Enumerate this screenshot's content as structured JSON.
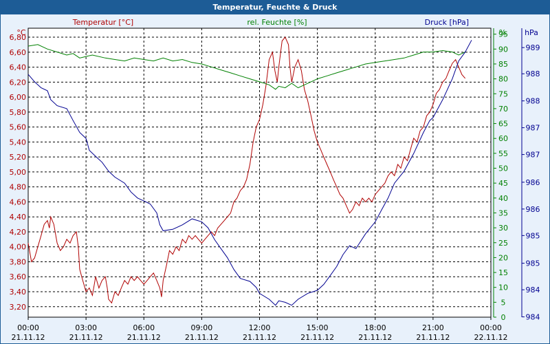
{
  "title": "Temperatur, Feuchte & Druck",
  "chart_data": {
    "type": "line",
    "legend": {
      "temperature": "Temperatur [°C]",
      "humidity": "rel. Feuchte [%]",
      "pressure": "Druck [hPa]"
    },
    "axes": {
      "temperature": {
        "unit": "°C",
        "ylim": [
          3.06,
          6.92
        ],
        "ticks": [
          "3,20",
          "3,40",
          "3,60",
          "3,80",
          "4,00",
          "4,20",
          "4,40",
          "4,60",
          "4,80",
          "5,00",
          "5,20",
          "5,40",
          "5,60",
          "5,80",
          "6,00",
          "6,20",
          "6,40",
          "6,60",
          "6,80"
        ],
        "tick_values": [
          3.2,
          3.4,
          3.6,
          3.8,
          4.0,
          4.2,
          4.4,
          4.6,
          4.8,
          5.0,
          5.2,
          5.4,
          5.6,
          5.8,
          6.0,
          6.2,
          6.4,
          6.6,
          6.8
        ],
        "color": "#b00000"
      },
      "humidity": {
        "unit": "%",
        "ylim": [
          0,
          97
        ],
        "ticks": [
          "0",
          "5",
          "10",
          "15",
          "20",
          "25",
          "30",
          "35",
          "40",
          "45",
          "50",
          "55",
          "60",
          "65",
          "70",
          "75",
          "80",
          "85",
          "90",
          "95"
        ],
        "tick_values": [
          0,
          5,
          10,
          15,
          20,
          25,
          30,
          35,
          40,
          45,
          50,
          55,
          60,
          65,
          70,
          75,
          80,
          85,
          90,
          95
        ],
        "color": "#008000"
      },
      "pressure": {
        "unit": "hPa",
        "ticks": [
          "989",
          "988",
          "988",
          "987",
          "987",
          "986",
          "986",
          "985",
          "985",
          "984",
          "984"
        ],
        "tick_humidity_positions": [
          90.5,
          81.7,
          72.6,
          63.6,
          54.6,
          45.3,
          36.3,
          27.4,
          18.1,
          9.2,
          0.1
        ],
        "color": "#000090"
      }
    },
    "x": {
      "ticks_time": [
        "00:00",
        "03:00",
        "06:00",
        "09:00",
        "12:00",
        "15:00",
        "18:00",
        "21:00",
        "00:00"
      ],
      "ticks_date": [
        "21.11.12",
        "21.11.12",
        "21.11.12",
        "21.11.12",
        "21.11.12",
        "21.11.12",
        "21.11.12",
        "21.11.12",
        "22.11.12"
      ],
      "xlim_hours": [
        0,
        24
      ]
    },
    "grid": true,
    "series": [
      {
        "name": "Temperatur [°C]",
        "axis": "temperature",
        "color": "#b00000",
        "points": [
          [
            0,
            4.05
          ],
          [
            0.17,
            3.8
          ],
          [
            0.33,
            3.85
          ],
          [
            0.5,
            4.0
          ],
          [
            0.67,
            4.15
          ],
          [
            0.83,
            4.3
          ],
          [
            1.0,
            4.35
          ],
          [
            1.1,
            4.25
          ],
          [
            1.17,
            4.4
          ],
          [
            1.33,
            4.3
          ],
          [
            1.5,
            4.05
          ],
          [
            1.67,
            3.95
          ],
          [
            1.83,
            4.0
          ],
          [
            2.0,
            4.1
          ],
          [
            2.17,
            4.05
          ],
          [
            2.33,
            4.15
          ],
          [
            2.5,
            4.2
          ],
          [
            2.6,
            4.0
          ],
          [
            2.67,
            3.7
          ],
          [
            2.83,
            3.55
          ],
          [
            3.0,
            3.4
          ],
          [
            3.17,
            3.45
          ],
          [
            3.33,
            3.35
          ],
          [
            3.5,
            3.6
          ],
          [
            3.67,
            3.45
          ],
          [
            3.83,
            3.55
          ],
          [
            4.0,
            3.6
          ],
          [
            4.1,
            3.45
          ],
          [
            4.17,
            3.3
          ],
          [
            4.33,
            3.25
          ],
          [
            4.5,
            3.4
          ],
          [
            4.67,
            3.35
          ],
          [
            4.83,
            3.45
          ],
          [
            5.0,
            3.55
          ],
          [
            5.17,
            3.5
          ],
          [
            5.33,
            3.6
          ],
          [
            5.5,
            3.55
          ],
          [
            5.67,
            3.6
          ],
          [
            5.83,
            3.55
          ],
          [
            6.0,
            3.5
          ],
          [
            6.17,
            3.55
          ],
          [
            6.33,
            3.6
          ],
          [
            6.5,
            3.65
          ],
          [
            6.67,
            3.55
          ],
          [
            6.83,
            3.45
          ],
          [
            6.92,
            3.33
          ],
          [
            7.0,
            3.55
          ],
          [
            7.17,
            3.75
          ],
          [
            7.33,
            3.95
          ],
          [
            7.5,
            3.9
          ],
          [
            7.67,
            4.0
          ],
          [
            7.83,
            3.95
          ],
          [
            8.0,
            4.1
          ],
          [
            8.17,
            4.05
          ],
          [
            8.33,
            4.15
          ],
          [
            8.5,
            4.1
          ],
          [
            8.67,
            4.15
          ],
          [
            8.83,
            4.1
          ],
          [
            9.0,
            4.05
          ],
          [
            9.17,
            4.1
          ],
          [
            9.33,
            4.15
          ],
          [
            9.5,
            4.2
          ],
          [
            9.67,
            4.15
          ],
          [
            9.83,
            4.25
          ],
          [
            10.0,
            4.3
          ],
          [
            10.17,
            4.35
          ],
          [
            10.33,
            4.4
          ],
          [
            10.5,
            4.45
          ],
          [
            10.67,
            4.6
          ],
          [
            10.83,
            4.65
          ],
          [
            11.0,
            4.75
          ],
          [
            11.17,
            4.8
          ],
          [
            11.33,
            4.9
          ],
          [
            11.5,
            5.1
          ],
          [
            11.67,
            5.4
          ],
          [
            11.83,
            5.6
          ],
          [
            12.0,
            5.7
          ],
          [
            12.17,
            5.9
          ],
          [
            12.33,
            6.15
          ],
          [
            12.5,
            6.5
          ],
          [
            12.67,
            6.6
          ],
          [
            12.8,
            6.35
          ],
          [
            12.92,
            6.2
          ],
          [
            13.0,
            6.4
          ],
          [
            13.17,
            6.75
          ],
          [
            13.33,
            6.8
          ],
          [
            13.5,
            6.7
          ],
          [
            13.58,
            6.4
          ],
          [
            13.67,
            6.2
          ],
          [
            13.83,
            6.4
          ],
          [
            14.0,
            6.5
          ],
          [
            14.17,
            6.35
          ],
          [
            14.33,
            6.1
          ],
          [
            14.5,
            5.95
          ],
          [
            14.67,
            5.75
          ],
          [
            14.83,
            5.55
          ],
          [
            15.0,
            5.4
          ],
          [
            15.17,
            5.3
          ],
          [
            15.33,
            5.2
          ],
          [
            15.5,
            5.1
          ],
          [
            15.67,
            5.0
          ],
          [
            15.83,
            4.9
          ],
          [
            16.0,
            4.8
          ],
          [
            16.17,
            4.7
          ],
          [
            16.33,
            4.65
          ],
          [
            16.5,
            4.55
          ],
          [
            16.67,
            4.45
          ],
          [
            16.83,
            4.5
          ],
          [
            17.0,
            4.6
          ],
          [
            17.17,
            4.55
          ],
          [
            17.33,
            4.65
          ],
          [
            17.5,
            4.6
          ],
          [
            17.67,
            4.65
          ],
          [
            17.83,
            4.6
          ],
          [
            18.0,
            4.7
          ],
          [
            18.17,
            4.75
          ],
          [
            18.33,
            4.8
          ],
          [
            18.5,
            4.85
          ],
          [
            18.67,
            4.95
          ],
          [
            18.83,
            5.0
          ],
          [
            19.0,
            4.95
          ],
          [
            19.17,
            5.1
          ],
          [
            19.33,
            5.05
          ],
          [
            19.5,
            5.2
          ],
          [
            19.67,
            5.15
          ],
          [
            19.83,
            5.3
          ],
          [
            20.0,
            5.45
          ],
          [
            20.17,
            5.4
          ],
          [
            20.33,
            5.55
          ],
          [
            20.5,
            5.6
          ],
          [
            20.67,
            5.75
          ],
          [
            20.83,
            5.8
          ],
          [
            21.0,
            5.9
          ],
          [
            21.17,
            6.05
          ],
          [
            21.33,
            6.1
          ],
          [
            21.5,
            6.2
          ],
          [
            21.67,
            6.25
          ],
          [
            21.83,
            6.35
          ],
          [
            22.0,
            6.45
          ],
          [
            22.17,
            6.5
          ],
          [
            22.33,
            6.4
          ],
          [
            22.5,
            6.3
          ],
          [
            22.67,
            6.25
          ]
        ]
      },
      {
        "name": "rel. Feuchte [%]",
        "axis": "humidity",
        "color": "#008000",
        "points": [
          [
            0,
            91
          ],
          [
            0.5,
            91.5
          ],
          [
            1.0,
            90
          ],
          [
            1.5,
            89
          ],
          [
            2.0,
            88
          ],
          [
            2.33,
            88.5
          ],
          [
            2.67,
            87
          ],
          [
            3.0,
            87.5
          ],
          [
            3.33,
            88
          ],
          [
            4.0,
            87
          ],
          [
            4.5,
            86.5
          ],
          [
            5.0,
            86
          ],
          [
            5.5,
            87
          ],
          [
            6.0,
            86.5
          ],
          [
            6.5,
            86
          ],
          [
            7.0,
            87
          ],
          [
            7.5,
            86
          ],
          [
            8.0,
            86.5
          ],
          [
            8.5,
            85.5
          ],
          [
            9.0,
            85
          ],
          [
            9.5,
            84
          ],
          [
            10.0,
            83
          ],
          [
            10.5,
            82
          ],
          [
            11.0,
            81
          ],
          [
            11.5,
            80
          ],
          [
            12.0,
            79
          ],
          [
            12.5,
            78
          ],
          [
            12.83,
            76.5
          ],
          [
            13.0,
            77.5
          ],
          [
            13.33,
            77
          ],
          [
            13.67,
            78.5
          ],
          [
            14.0,
            77
          ],
          [
            14.33,
            78
          ],
          [
            14.67,
            79
          ],
          [
            15.0,
            80
          ],
          [
            15.5,
            81
          ],
          [
            16.0,
            82
          ],
          [
            16.5,
            83
          ],
          [
            17.0,
            84
          ],
          [
            17.5,
            85
          ],
          [
            18.0,
            85.5
          ],
          [
            18.5,
            86
          ],
          [
            19.0,
            86.5
          ],
          [
            19.5,
            87
          ],
          [
            20.0,
            88
          ],
          [
            20.5,
            89
          ],
          [
            21.0,
            89
          ],
          [
            21.5,
            89.5
          ],
          [
            22.0,
            89
          ],
          [
            22.33,
            88
          ],
          [
            22.67,
            89
          ]
        ]
      },
      {
        "name": "Druck [hPa]",
        "axis": "pressure",
        "axis_mapping": "humidity",
        "color": "#000090",
        "points": [
          [
            0,
            81.5
          ],
          [
            0.33,
            79
          ],
          [
            0.67,
            77
          ],
          [
            1.0,
            76
          ],
          [
            1.17,
            73
          ],
          [
            1.5,
            71
          ],
          [
            2.0,
            70
          ],
          [
            2.33,
            66
          ],
          [
            2.67,
            62
          ],
          [
            3.0,
            60
          ],
          [
            3.17,
            56
          ],
          [
            3.5,
            54
          ],
          [
            3.83,
            52
          ],
          [
            4.17,
            49
          ],
          [
            4.5,
            47
          ],
          [
            5.0,
            45
          ],
          [
            5.33,
            42
          ],
          [
            5.67,
            40
          ],
          [
            6.0,
            39
          ],
          [
            6.33,
            38
          ],
          [
            6.67,
            35
          ],
          [
            6.83,
            31
          ],
          [
            7.0,
            29
          ],
          [
            7.5,
            29.5
          ],
          [
            8.0,
            31
          ],
          [
            8.5,
            33
          ],
          [
            9.0,
            32
          ],
          [
            9.33,
            30
          ],
          [
            9.67,
            26
          ],
          [
            10.0,
            23
          ],
          [
            10.33,
            20
          ],
          [
            10.67,
            16
          ],
          [
            11.0,
            13
          ],
          [
            11.5,
            12
          ],
          [
            11.83,
            10
          ],
          [
            12.0,
            8
          ],
          [
            12.5,
            6
          ],
          [
            12.83,
            4
          ],
          [
            13.0,
            5.5
          ],
          [
            13.33,
            5
          ],
          [
            13.67,
            4
          ],
          [
            14.0,
            6
          ],
          [
            14.5,
            8
          ],
          [
            15.0,
            9
          ],
          [
            15.33,
            11
          ],
          [
            15.67,
            14
          ],
          [
            16.0,
            17
          ],
          [
            16.33,
            21
          ],
          [
            16.67,
            24
          ],
          [
            17.0,
            23
          ],
          [
            17.5,
            28
          ],
          [
            18.0,
            32
          ],
          [
            18.33,
            36
          ],
          [
            18.67,
            40
          ],
          [
            19.0,
            45
          ],
          [
            19.5,
            49
          ],
          [
            20.0,
            55
          ],
          [
            20.5,
            62
          ],
          [
            20.83,
            66
          ],
          [
            21.0,
            67
          ],
          [
            21.5,
            73
          ],
          [
            22.0,
            80
          ],
          [
            22.33,
            86
          ],
          [
            22.67,
            89
          ],
          [
            23.0,
            93
          ]
        ]
      }
    ]
  }
}
